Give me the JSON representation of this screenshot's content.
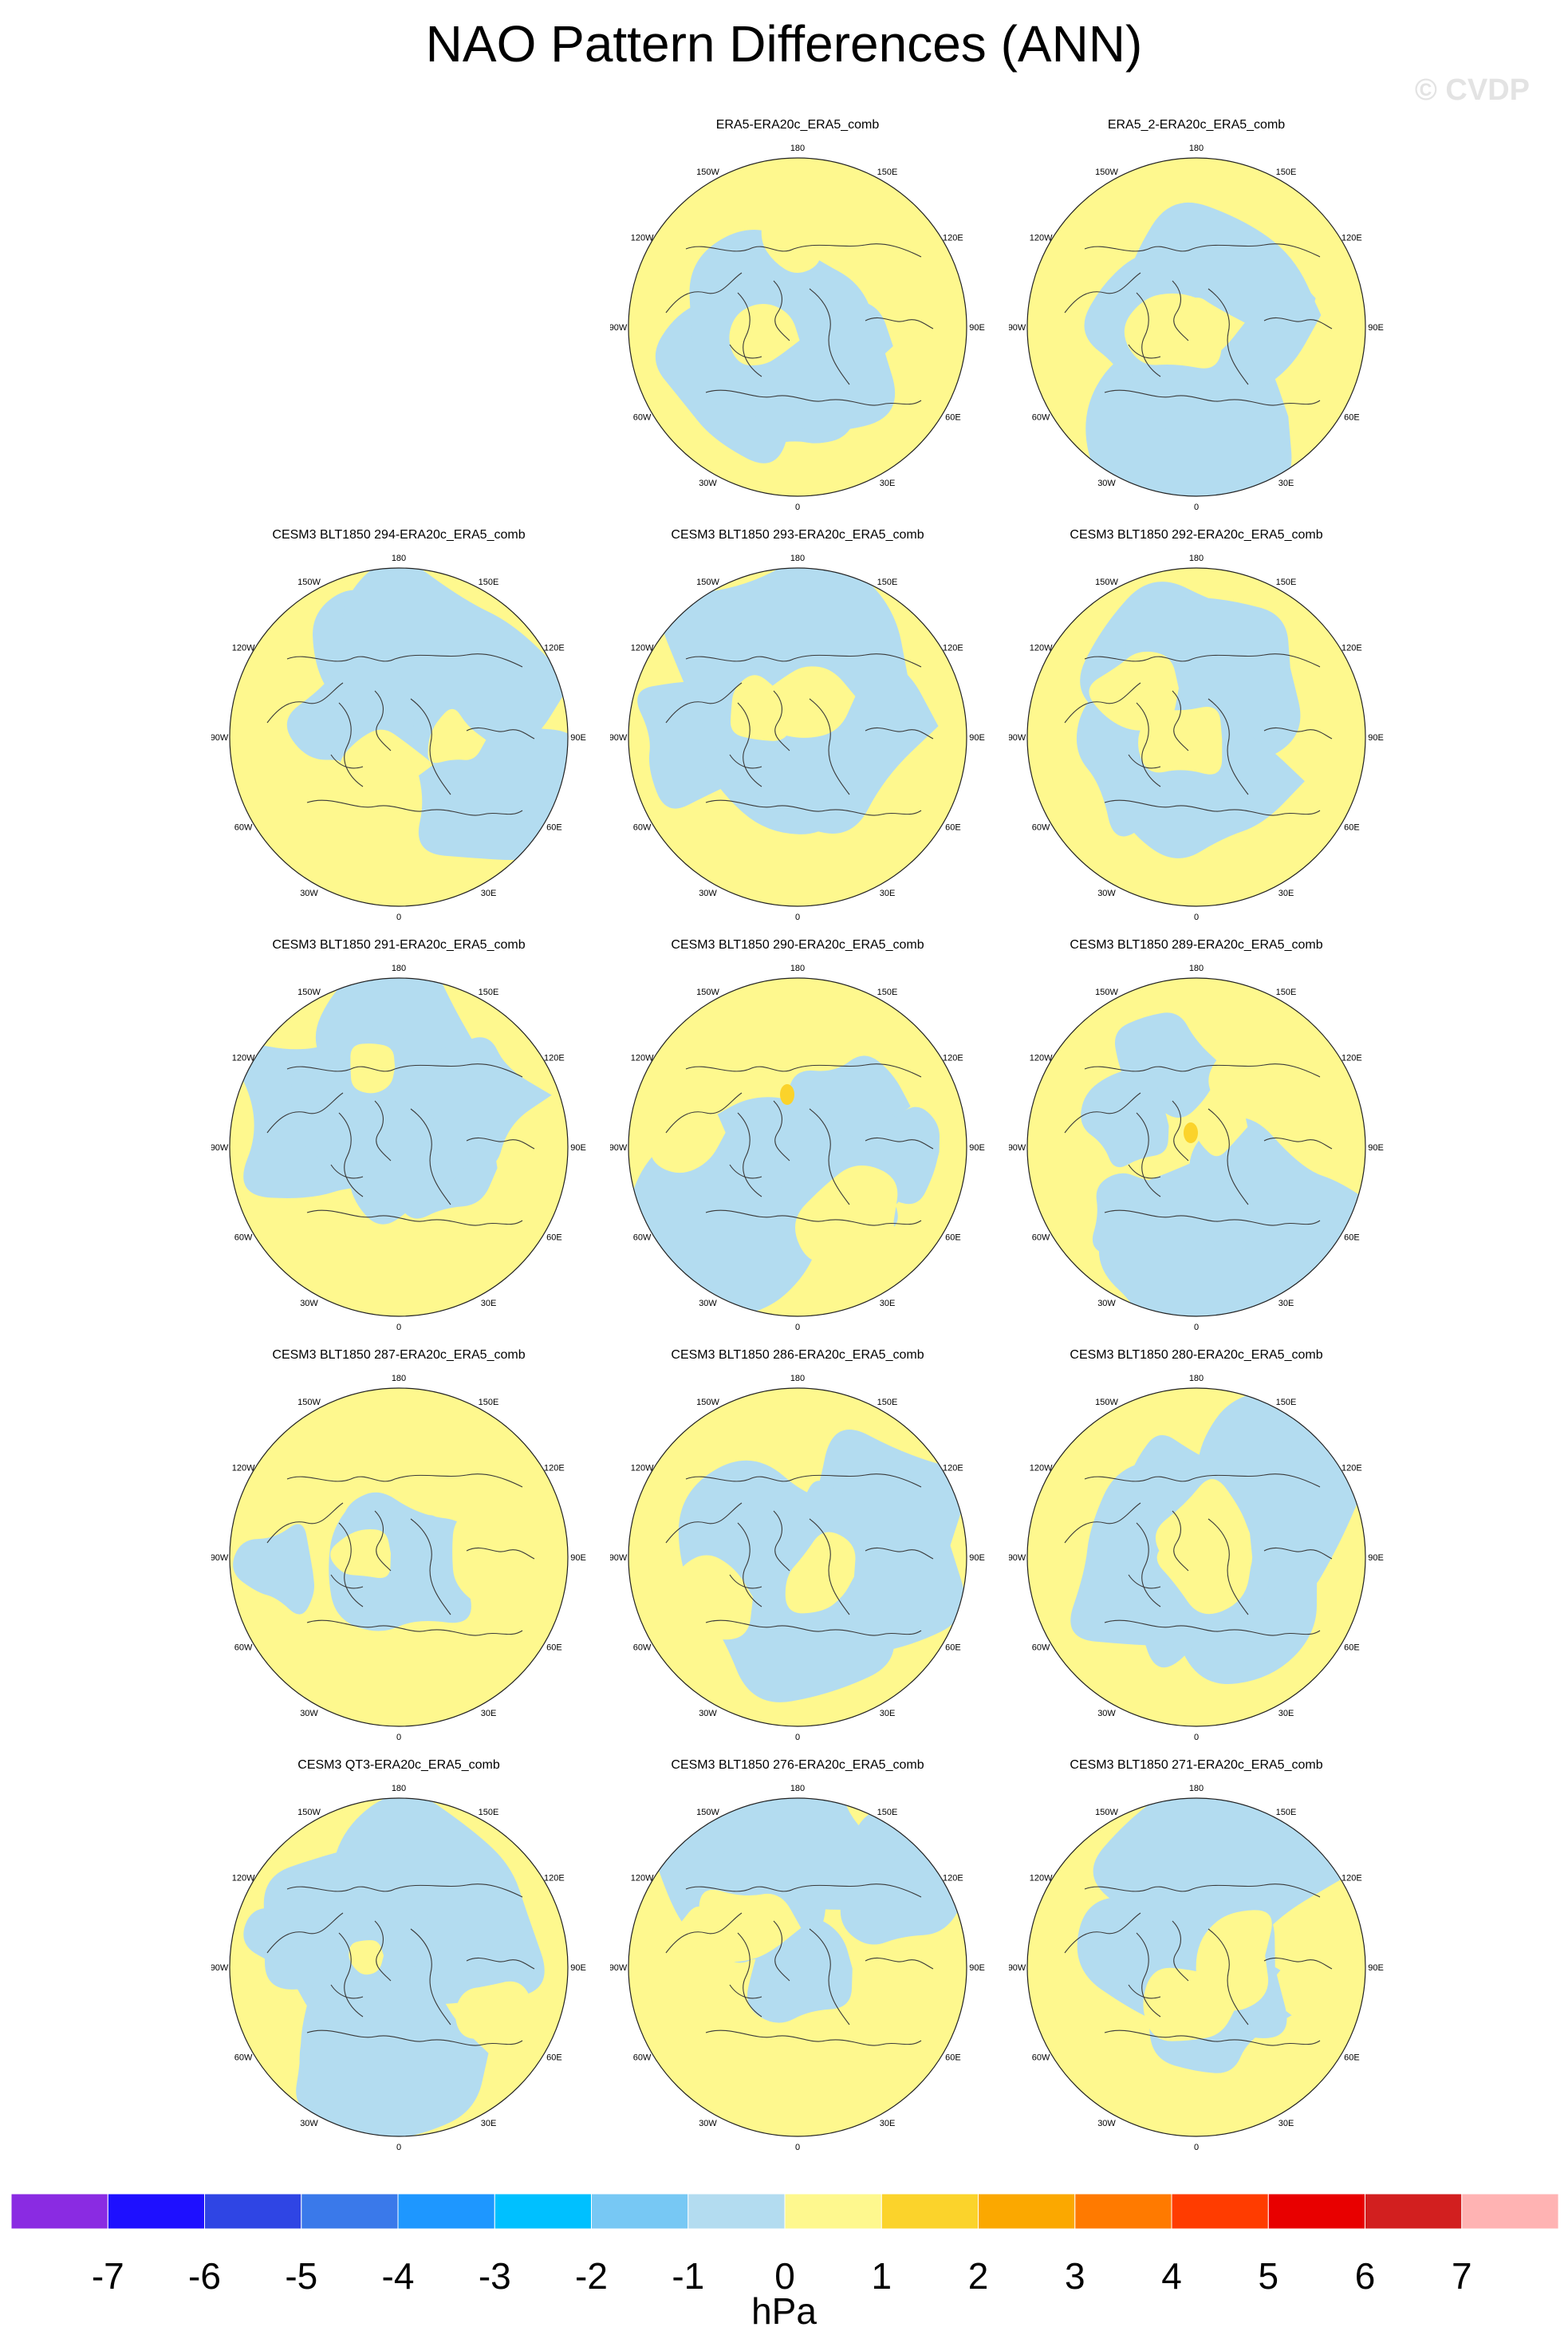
{
  "title": "NAO Pattern Differences (ANN)",
  "watermark": "© CVDP",
  "colors": {
    "negative_small": "#b3dcf0",
    "positive_small": "#fef88e",
    "positive_medium": "#fbd32b",
    "coast": "#3a3a3a",
    "border": "#222222"
  },
  "lon_labels": [
    "180",
    "150E",
    "120E",
    "90E",
    "60E",
    "30E",
    "0",
    "30W",
    "60W",
    "90W",
    "120W",
    "150W"
  ],
  "panels": [
    {
      "row": 0,
      "col": 1,
      "title": "ERA5-ERA20c_ERA5_comb"
    },
    {
      "row": 0,
      "col": 2,
      "title": "ERA5_2-ERA20c_ERA5_comb"
    },
    {
      "row": 1,
      "col": 0,
      "title": "CESM3 BLT1850 294-ERA20c_ERA5_comb"
    },
    {
      "row": 1,
      "col": 1,
      "title": "CESM3 BLT1850 293-ERA20c_ERA5_comb"
    },
    {
      "row": 1,
      "col": 2,
      "title": "CESM3 BLT1850 292-ERA20c_ERA5_comb"
    },
    {
      "row": 2,
      "col": 0,
      "title": "CESM3 BLT1850 291-ERA20c_ERA5_comb"
    },
    {
      "row": 2,
      "col": 1,
      "title": "CESM3 BLT1850 290-ERA20c_ERA5_comb"
    },
    {
      "row": 2,
      "col": 2,
      "title": "CESM3 BLT1850 289-ERA20c_ERA5_comb"
    },
    {
      "row": 3,
      "col": 0,
      "title": "CESM3 BLT1850 287-ERA20c_ERA5_comb"
    },
    {
      "row": 3,
      "col": 1,
      "title": "CESM3 BLT1850 286-ERA20c_ERA5_comb"
    },
    {
      "row": 3,
      "col": 2,
      "title": "CESM3 BLT1850 280-ERA20c_ERA5_comb"
    },
    {
      "row": 4,
      "col": 0,
      "title": "CESM3 QT3-ERA20c_ERA5_comb"
    },
    {
      "row": 4,
      "col": 1,
      "title": "CESM3 BLT1850 276-ERA20c_ERA5_comb"
    },
    {
      "row": 4,
      "col": 2,
      "title": "CESM3 BLT1850 271-ERA20c_ERA5_comb"
    }
  ],
  "colorbar": {
    "colors": [
      "#8a2be2",
      "#1e10ff",
      "#2f45e4",
      "#3a79ea",
      "#1e97ff",
      "#00c0ff",
      "#77c8f4",
      "#b3dcf0",
      "#fef88e",
      "#fbd32b",
      "#fba800",
      "#ff7a00",
      "#ff3c00",
      "#e80000",
      "#d21f1f",
      "#ffb3b3"
    ],
    "labels": [
      "-7",
      "-6",
      "-5",
      "-4",
      "-3",
      "-2",
      "-1",
      "0",
      "1",
      "2",
      "3",
      "4",
      "5",
      "6",
      "7"
    ],
    "units": "hPa"
  }
}
